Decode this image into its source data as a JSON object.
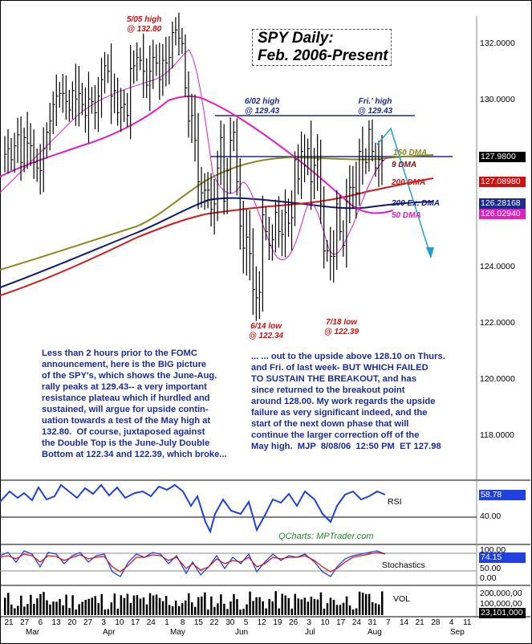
{
  "title": {
    "line1": "SPY Daily:",
    "line2": "Feb. 2006-Present"
  },
  "annotations": {
    "may_high": "5/05 high\n@ 132.80",
    "june_high": "6/02 high\n@ 129.43",
    "fri_high": "Fri.' high\n@ 129.43",
    "june_low": "6/14 low\n@ 122.34",
    "july_low": "7/18 low\n@ 122.39"
  },
  "commentary": {
    "left": "Less than 2 hours prior to the FOMC\nannouncement, here is the BIG picture\nof the SPY's, which shows the June-Aug.\nrally peaks at 129.43-- a very important\nresistance plateau which if hurdled and\nsustained, will argue for upside contin-\nuation towards a test of the May high at\n132.80.  Of course, juxtaposed against\nthe Double Top is the June-July Double\nBottom at 122.34 and 122.39, which broke...",
    "right": "... ... out to the upside above 128.10 on Thurs.\nand Fri. of last week- BUT WHICH FAILED\nTO SUSTAIN THE BREAKOUT, and has\nsince returned to the breakout point\naround 128.00. My work regards the upside\nfailure as very significant indeed, and the\nstart of the next down phase that will\ncontinue the larger correction off of the\nMay high.  MJP  8/08/06  12:50 PM  ET 127.98"
  },
  "ma_labels": {
    "dma150": "150 DMA",
    "dma9": "9 DMA",
    "dma200": "200 DMA",
    "exdma200": "200 Ex. DMA",
    "dma50": "50 DMA"
  },
  "price_axis": {
    "ticks": [
      "132.0000",
      "130.0000",
      "124.0000",
      "122.0000",
      "120.0000",
      "118.0000"
    ],
    "tick_values": [
      132,
      130,
      124,
      122,
      120,
      118
    ],
    "last_values": [
      {
        "text": "127.9800",
        "color": "#000000"
      },
      {
        "text": "127.08980",
        "color": "#d01010"
      },
      {
        "text": "126.28168",
        "color": "#1c2a8c"
      },
      {
        "text": "126.02940",
        "color": "#e020c0"
      }
    ]
  },
  "rsi": {
    "label": "RSI",
    "last": "58.78",
    "tick": "40.00",
    "last_color": "#2040e0"
  },
  "stoch": {
    "label": "Stochastics",
    "last": "74.15",
    "ticks": [
      "100.00",
      "50.00",
      "0.00"
    ],
    "last_color": "#2040e0"
  },
  "vol": {
    "label": "VOL",
    "ticks": [
      "200,000,00",
      "100,000,00"
    ],
    "last": "23,101,000"
  },
  "credit": "QCharts: MPTrader.com",
  "x_axis": {
    "ticks": [
      "21",
      "27",
      "6",
      "13",
      "20",
      "27",
      "3",
      "10",
      "17",
      "24",
      "1",
      "8",
      "15",
      "22",
      "30",
      "5",
      "12",
      "19",
      "26",
      "3",
      "10",
      "17",
      "24",
      "31",
      "7",
      "14",
      "21",
      "28",
      "4",
      "11"
    ],
    "months": [
      "Mar",
      "Apr",
      "May",
      "Jun",
      "Jul",
      "Aug",
      "Sep"
    ]
  },
  "chart_data": {
    "type": "line",
    "title": "SPY Daily: Feb. 2006-Present",
    "ylim": [
      116.4,
      133.2
    ],
    "resistance": 129.43,
    "breakout_level": 128.1,
    "key_levels": {
      "may_high": 132.8,
      "june_high": 129.43,
      "fri_high": 129.43,
      "june_low": 122.34,
      "july_low": 122.39
    },
    "x": [
      "02-21",
      "02-22",
      "02-23",
      "02-24",
      "02-27",
      "02-28",
      "03-01",
      "03-02",
      "03-03",
      "03-06",
      "03-07",
      "03-08",
      "03-09",
      "03-10",
      "03-13",
      "03-14",
      "03-15",
      "03-16",
      "03-17",
      "03-20",
      "03-21",
      "03-22",
      "03-23",
      "03-24",
      "03-27",
      "03-28",
      "03-29",
      "03-30",
      "03-31",
      "04-03",
      "04-04",
      "04-05",
      "04-06",
      "04-07",
      "04-10",
      "04-11",
      "04-12",
      "04-13",
      "04-17",
      "04-18",
      "04-19",
      "04-20",
      "04-21",
      "04-24",
      "04-25",
      "04-26",
      "04-27",
      "04-28",
      "05-01",
      "05-02",
      "05-03",
      "05-04",
      "05-05",
      "05-08",
      "05-09",
      "05-10",
      "05-11",
      "05-12",
      "05-15",
      "05-16",
      "05-17",
      "05-18",
      "05-19",
      "05-22",
      "05-23",
      "05-24",
      "05-25",
      "05-26",
      "05-30",
      "05-31",
      "06-01",
      "06-02",
      "06-05",
      "06-06",
      "06-07",
      "06-08",
      "06-09",
      "06-12",
      "06-13",
      "06-14",
      "06-15",
      "06-16",
      "06-19",
      "06-20",
      "06-21",
      "06-22",
      "06-23",
      "06-26",
      "06-27",
      "06-28",
      "06-29",
      "06-30",
      "07-03",
      "07-05",
      "07-06",
      "07-07",
      "07-10",
      "07-11",
      "07-12",
      "07-13",
      "07-14",
      "07-17",
      "07-18",
      "07-19",
      "07-20",
      "07-21",
      "07-24",
      "07-25",
      "07-26",
      "07-27",
      "07-28",
      "07-31",
      "08-01",
      "08-02",
      "08-03",
      "08-04",
      "08-07",
      "08-08"
    ],
    "series": [
      {
        "values": [
          128.2,
          128.4,
          128.0,
          128.5,
          128.9,
          127.9,
          128.8,
          128.6,
          128.5,
          127.9,
          127.7,
          127.6,
          128.4,
          129.0,
          129.4,
          130.0,
          130.3,
          130.4,
          130.4,
          130.1,
          129.8,
          130.5,
          130.2,
          130.4,
          130.0,
          129.6,
          130.2,
          130.1,
          129.7,
          130.3,
          130.9,
          131.4,
          131.2,
          130.3,
          130.5,
          129.7,
          129.9,
          130.0,
          129.6,
          131.3,
          131.4,
          131.7,
          131.6,
          131.2,
          130.7,
          131.2,
          131.7,
          131.5,
          130.9,
          131.6,
          131.5,
          131.7,
          132.6,
          132.7,
          132.4,
          132.2,
          130.6,
          129.4,
          129.6,
          128.7,
          127.2,
          126.8,
          126.9,
          126.9,
          126.2,
          126.4,
          127.7,
          128.8,
          126.5,
          127.6,
          128.7,
          129.0,
          127.2,
          125.6,
          124.8,
          125.2,
          124.6,
          123.3,
          123.0,
          123.2,
          126.0,
          125.4,
          124.9,
          125.1,
          126.1,
          125.4,
          125.3,
          126.1,
          125.7,
          125.9,
          128.0,
          127.3,
          128.3,
          127.8,
          128.4,
          127.2,
          127.8,
          128.0,
          126.4,
          124.7,
          124.7,
          124.5,
          124.5,
          126.4,
          125.4,
          124.9,
          126.5,
          127.0,
          127.0,
          126.8,
          128.3,
          128.0,
          127.9,
          129.1,
          128.3,
          127.7,
          128.0,
          127.98
        ]
      }
    ]
  }
}
